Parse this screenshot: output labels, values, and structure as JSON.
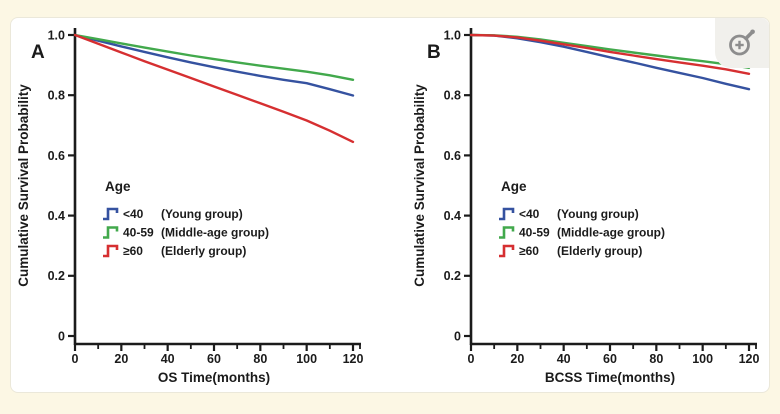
{
  "page": {
    "background_color": "#fcf7e4",
    "card_color": "#ffffff",
    "text_color": "#1b1b1b",
    "axis_color": "#1b1b1b"
  },
  "zoom_button": {
    "icon": "magnifier-plus-icon",
    "bg_color": "#f1f0ec",
    "glyph_color": "#8d8d8d"
  },
  "chart_data": [
    {
      "type": "line",
      "panel_label": "A",
      "title": "",
      "xlabel": "OS Time(months)",
      "ylabel": "Cumulative Survival Probability",
      "xlim": [
        0,
        123
      ],
      "ylim": [
        0,
        1.05
      ],
      "grid": false,
      "x_ticks": [
        0,
        20,
        40,
        60,
        80,
        100,
        120
      ],
      "x_minor_ticks": [
        10,
        30,
        50,
        70,
        90,
        110
      ],
      "y_ticks": [
        0,
        0.2,
        0.4,
        0.6,
        0.8,
        1.0
      ],
      "y_tick_labels": [
        "0",
        "0.2",
        "0.4",
        "0.6",
        "0.8",
        "1.0"
      ],
      "legend": {
        "title": "Age",
        "position": "center-left",
        "entries": [
          {
            "range": "<40",
            "group": "(Young group)",
            "color": "#3552a0"
          },
          {
            "range": "40-59",
            "group": "(Middle-age group)",
            "color": "#42a94c"
          },
          {
            "range": "≥60",
            "group": "(Elderly group)",
            "color": "#d62f31"
          }
        ]
      },
      "x": [
        0,
        10,
        20,
        30,
        40,
        50,
        60,
        70,
        80,
        90,
        100,
        110,
        120
      ],
      "series": [
        {
          "name": "<40 (Young group)",
          "color": "#3552a0",
          "values": [
            1.0,
            0.981,
            0.962,
            0.944,
            0.926,
            0.909,
            0.893,
            0.878,
            0.864,
            0.851,
            0.84,
            0.82,
            0.799
          ]
        },
        {
          "name": "40-59 (Middle-age group)",
          "color": "#42a94c",
          "values": [
            1.0,
            0.986,
            0.972,
            0.958,
            0.945,
            0.932,
            0.92,
            0.909,
            0.898,
            0.888,
            0.878,
            0.866,
            0.851
          ]
        },
        {
          "name": "≥60 (Elderly group)",
          "color": "#d62f31",
          "values": [
            1.0,
            0.971,
            0.942,
            0.913,
            0.885,
            0.857,
            0.829,
            0.801,
            0.773,
            0.745,
            0.716,
            0.682,
            0.645
          ]
        }
      ]
    },
    {
      "type": "line",
      "panel_label": "B",
      "title": "",
      "xlabel": "BCSS Time(months)",
      "ylabel": "Cumulative Survival Probability",
      "xlim": [
        0,
        123
      ],
      "ylim": [
        0,
        1.05
      ],
      "grid": false,
      "x_ticks": [
        0,
        20,
        40,
        60,
        80,
        100,
        120
      ],
      "x_minor_ticks": [
        10,
        30,
        50,
        70,
        90,
        110
      ],
      "y_ticks": [
        0,
        0.2,
        0.4,
        0.6,
        0.8,
        1.0
      ],
      "y_tick_labels": [
        "0",
        "0.2",
        "0.4",
        "0.6",
        "0.8",
        "1.0"
      ],
      "legend": {
        "title": "Age",
        "position": "center-left",
        "entries": [
          {
            "range": "<40",
            "group": "(Young group)",
            "color": "#3552a0"
          },
          {
            "range": "40-59",
            "group": "(Middle-age group)",
            "color": "#42a94c"
          },
          {
            "range": "≥60",
            "group": "(Elderly group)",
            "color": "#d62f31"
          }
        ]
      },
      "x": [
        0,
        10,
        20,
        30,
        40,
        50,
        60,
        70,
        80,
        90,
        100,
        110,
        120
      ],
      "series": [
        {
          "name": "<40 (Young group)",
          "color": "#3552a0",
          "values": [
            1.0,
            0.998,
            0.989,
            0.976,
            0.961,
            0.944,
            0.926,
            0.909,
            0.891,
            0.874,
            0.857,
            0.838,
            0.82
          ]
        },
        {
          "name": "40-59 (Middle-age group)",
          "color": "#42a94c",
          "values": [
            1.0,
            0.999,
            0.994,
            0.985,
            0.974,
            0.963,
            0.952,
            0.942,
            0.932,
            0.922,
            0.913,
            0.903,
            0.891
          ]
        },
        {
          "name": "≥60 (Elderly group)",
          "color": "#d62f31",
          "values": [
            1.0,
            0.998,
            0.992,
            0.981,
            0.969,
            0.957,
            0.944,
            0.932,
            0.92,
            0.909,
            0.898,
            0.886,
            0.871
          ]
        }
      ]
    }
  ]
}
